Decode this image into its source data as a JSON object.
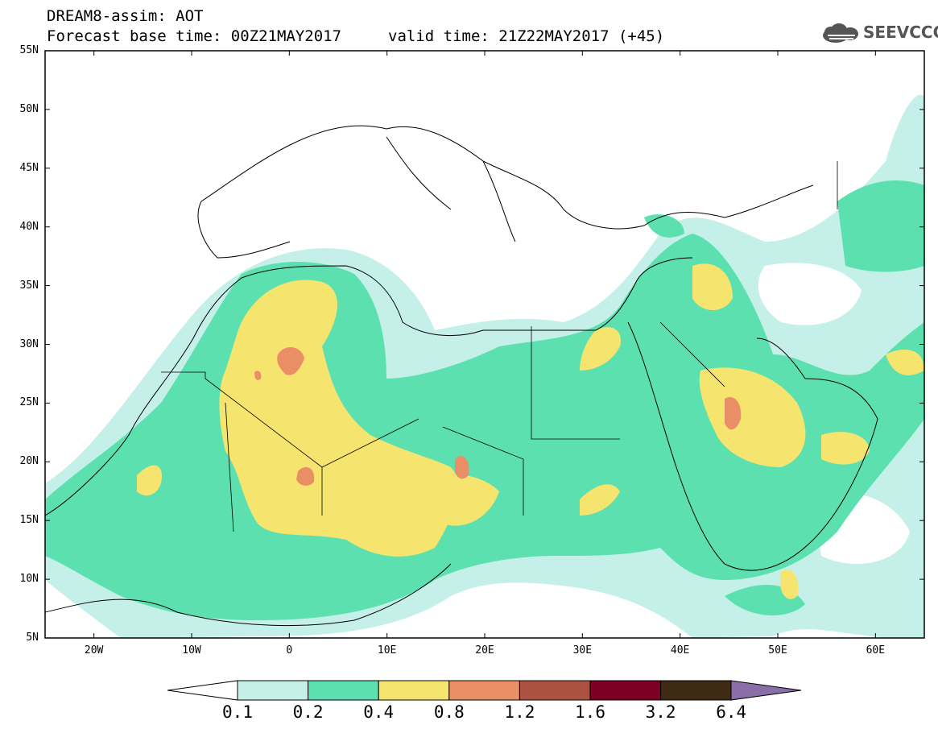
{
  "header": {
    "title_line1": "DREAM8-assim: AOT",
    "title_line2a": "Forecast base time: 00Z21MAY2017",
    "title_line2b": "valid time: 21Z22MAY2017 (+45)",
    "logo_text": "SEEVCCC",
    "logo_icon": "cloud-logo-icon"
  },
  "axes": {
    "lat_labels": [
      "55N",
      "50N",
      "45N",
      "40N",
      "35N",
      "30N",
      "25N",
      "20N",
      "15N",
      "10N",
      "5N"
    ],
    "lon_labels": [
      "20W",
      "10W",
      "0",
      "10E",
      "20E",
      "30E",
      "40E",
      "50E",
      "60E"
    ],
    "lat_range": [
      5,
      55
    ],
    "lon_range": [
      -25,
      65
    ]
  },
  "colorbar": {
    "labels": [
      "0.1",
      "0.2",
      "0.4",
      "0.8",
      "1.2",
      "1.6",
      "3.2",
      "6.4"
    ],
    "colors": [
      "#ffffff",
      "#c4f0e9",
      "#5ce0b0",
      "#f5e56f",
      "#ea8e65",
      "#ab5340",
      "#7d0023",
      "#3f2a14",
      "#8a6ea8"
    ]
  },
  "chart_data": {
    "type": "heatmap",
    "title": "DREAM8-assim: AOT",
    "levels": [
      0.1,
      0.2,
      0.4,
      0.8,
      1.2,
      1.6,
      3.2,
      6.4
    ],
    "lat_range": [
      5,
      55
    ],
    "lon_range": [
      -25,
      65
    ]
  }
}
